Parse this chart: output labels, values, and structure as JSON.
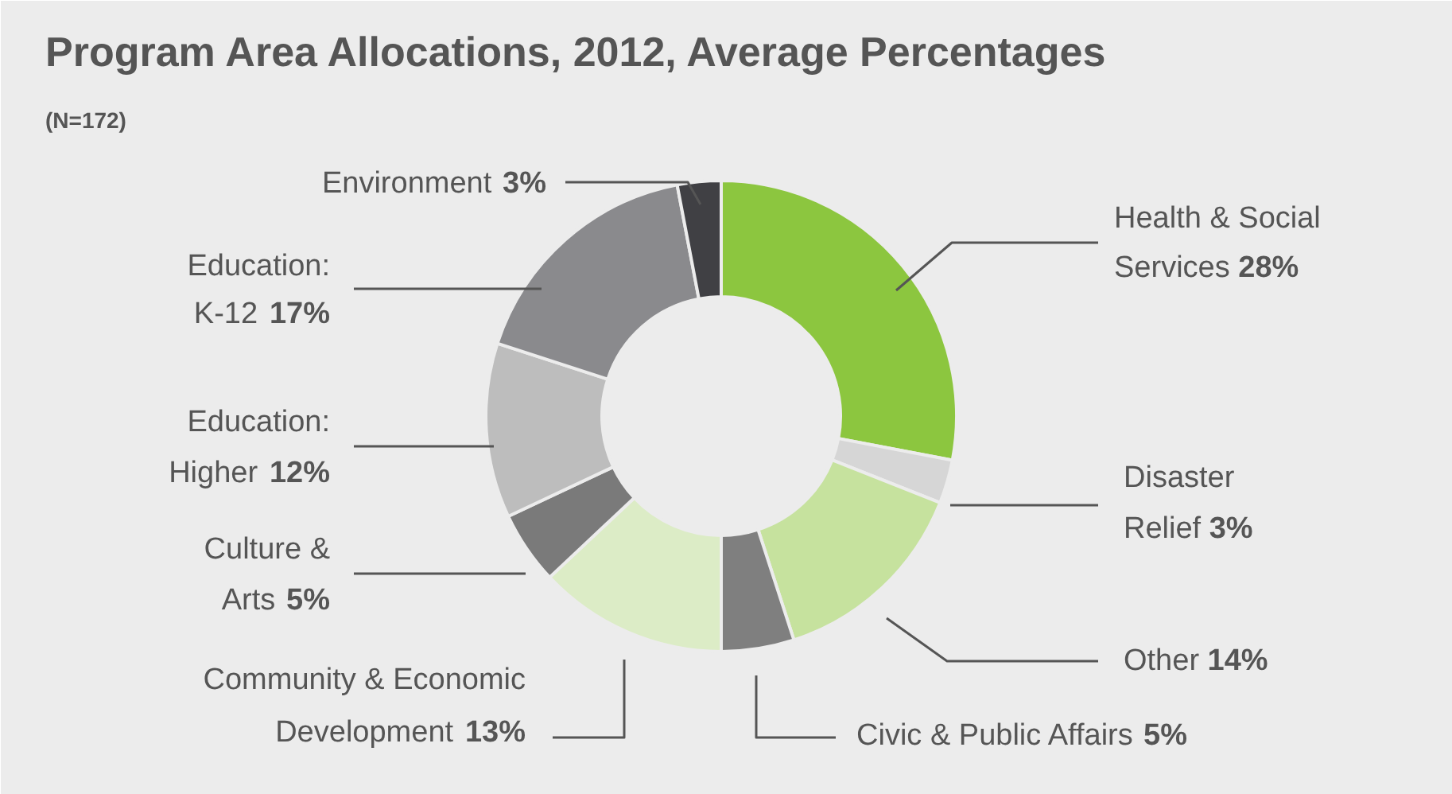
{
  "chart_data": {
    "type": "donut",
    "title": "Program Area Allocations, 2012, Average Percentages",
    "subtitle": "(N=172)",
    "categories": [
      "Health & Social Services",
      "Disaster Relief",
      "Other",
      "Civic & Public Affairs",
      "Community & Economic Development",
      "Culture & Arts",
      "Education: Higher",
      "Education: K-12",
      "Environment"
    ],
    "values": [
      28,
      3,
      14,
      5,
      13,
      5,
      12,
      17,
      3
    ],
    "value_labels": [
      "28%",
      "3%",
      "14%",
      "5%",
      "13%",
      "5%",
      "12%",
      "17%",
      "3%"
    ],
    "colors": [
      "#8cc63f",
      "#d6d6d6",
      "#c6e29e",
      "#7f7f7f",
      "#dcecc6",
      "#7a7a7a",
      "#bdbdbd",
      "#8a8a8d",
      "#404044"
    ]
  }
}
